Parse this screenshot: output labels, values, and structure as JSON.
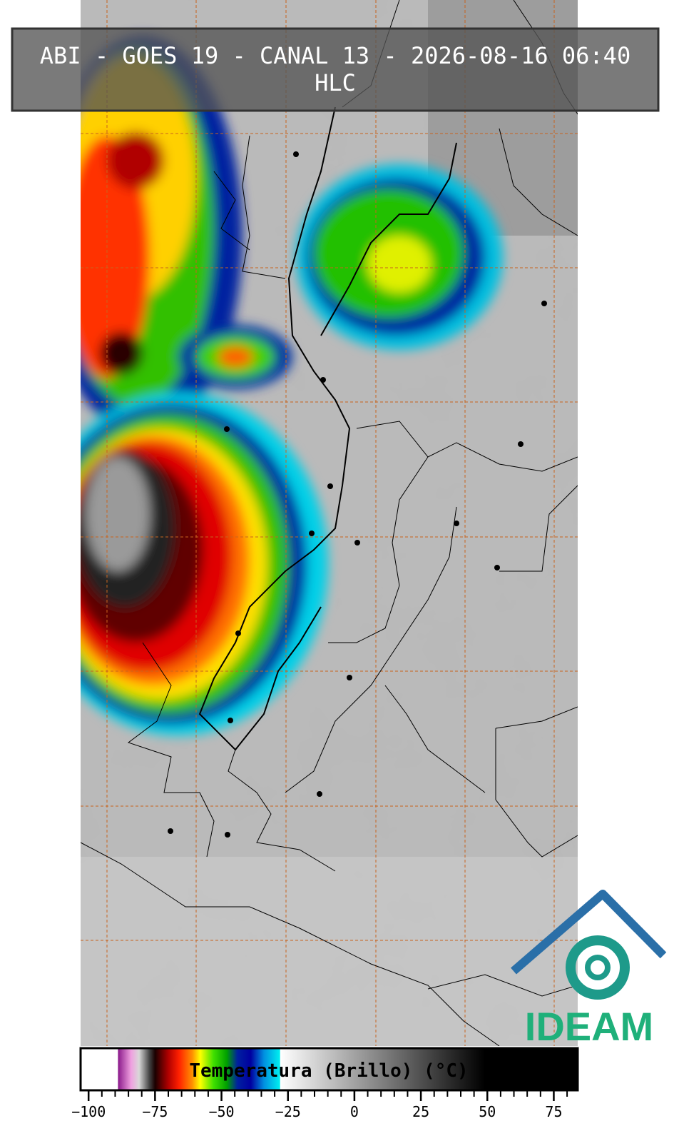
{
  "header": {
    "title": "ABI - GOES 19 - CANAL 13 - 2026-08-16 06:40",
    "subtitle": "HLC"
  },
  "logo": {
    "text": "IDEAM"
  },
  "colorbar": {
    "label": "Temperatura (Brillo) (°C)",
    "xlim": [
      -103,
      84
    ],
    "xticks": [
      {
        "value": -100,
        "label": "−100"
      },
      {
        "value": -75,
        "label": "−75"
      },
      {
        "value": -50,
        "label": "−50"
      },
      {
        "value": -25,
        "label": "−25"
      },
      0,
      25,
      50,
      75
    ],
    "minor_ticks": [
      -100,
      -95,
      -90,
      -85,
      -80,
      -75,
      -70,
      -65,
      -60,
      -55,
      -50,
      -45,
      -40,
      -35,
      -30,
      -25,
      -20,
      -15,
      -10,
      -5,
      0,
      5,
      10,
      15,
      20,
      25,
      30,
      35,
      40,
      45,
      50,
      55,
      60,
      65,
      70,
      75,
      80
    ],
    "colorscale": [
      {
        "value": -103,
        "color": "#ffffff"
      },
      {
        "value": -89,
        "color": "#ffffff"
      },
      {
        "value": -88.9,
        "color": "#8b1a8b"
      },
      {
        "value": -84,
        "color": "#f0a0e0"
      },
      {
        "value": -81,
        "color": "#d8d8d8"
      },
      {
        "value": -77,
        "color": "#404040"
      },
      {
        "value": -75,
        "color": "#1a0000"
      },
      {
        "value": -70,
        "color": "#b00000"
      },
      {
        "value": -66,
        "color": "#ff2000"
      },
      {
        "value": -61,
        "color": "#ff9000"
      },
      {
        "value": -58,
        "color": "#ffff00"
      },
      {
        "value": -53,
        "color": "#40e000"
      },
      {
        "value": -48,
        "color": "#00a000"
      },
      {
        "value": -44,
        "color": "#0020a0"
      },
      {
        "value": -39,
        "color": "#0000a0"
      },
      {
        "value": -34,
        "color": "#0090e0"
      },
      {
        "value": -28,
        "color": "#00f0f0"
      },
      {
        "value": -27.9,
        "color": "#ffffff"
      },
      {
        "value": 49,
        "color": "#000000"
      },
      {
        "value": 84,
        "color": "#000000"
      }
    ]
  }
}
